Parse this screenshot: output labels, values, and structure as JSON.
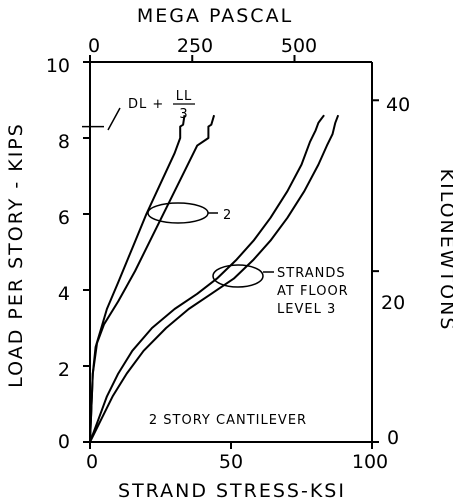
{
  "chart_data": {
    "type": "line",
    "title": "",
    "xlabel": "STRAND STRESS-KSI",
    "ylabel": "LOAD PER STORY - KIPS",
    "x2label": "MEGA PASCAL",
    "y2label": "KILONEWTONS",
    "xlim": [
      0,
      100
    ],
    "ylim": [
      0,
      10
    ],
    "x2lim": [
      0,
      689.5
    ],
    "y2lim": [
      0,
      44.48
    ],
    "x_ticks": [
      "0",
      "50",
      "100"
    ],
    "y_ticks": [
      "0",
      "2",
      "4",
      "6",
      "8",
      "10"
    ],
    "x2_ticks": [
      "0",
      "250",
      "500"
    ],
    "y2_ticks": [
      "0",
      "20",
      "40"
    ],
    "grid": false,
    "reference_load": 8.3,
    "series": [
      {
        "x": [
          0,
          1,
          2,
          4,
          6,
          10,
          15,
          20,
          25,
          30,
          32,
          32,
          33,
          33.5
        ],
        "y": [
          0,
          1.8,
          2.5,
          3.0,
          3.5,
          4.2,
          5.1,
          6.0,
          6.8,
          7.6,
          8.0,
          8.3,
          8.35,
          8.6
        ]
      },
      {
        "x": [
          0,
          1,
          2.5,
          5,
          10,
          16,
          22,
          28,
          34,
          38,
          42,
          42,
          43,
          44
        ],
        "y": [
          0,
          1.8,
          2.6,
          3.1,
          3.7,
          4.5,
          5.4,
          6.3,
          7.2,
          7.8,
          8.0,
          8.3,
          8.35,
          8.6
        ]
      },
      {
        "x": [
          0,
          3,
          6,
          10,
          15,
          22,
          30,
          38,
          45,
          52,
          58,
          64,
          70,
          75,
          78,
          80,
          81,
          82,
          83
        ],
        "y": [
          0,
          0.6,
          1.2,
          1.8,
          2.4,
          3.0,
          3.5,
          3.9,
          4.3,
          4.8,
          5.3,
          5.9,
          6.6,
          7.3,
          7.9,
          8.2,
          8.4,
          8.5,
          8.6
        ]
      },
      {
        "x": [
          0,
          4,
          8,
          13,
          19,
          27,
          35,
          43,
          51,
          58,
          64,
          70,
          76,
          81,
          84,
          86,
          87,
          88
        ],
        "y": [
          0,
          0.6,
          1.2,
          1.8,
          2.4,
          3.0,
          3.5,
          3.9,
          4.3,
          4.8,
          5.3,
          5.9,
          6.6,
          7.3,
          7.8,
          8.1,
          8.4,
          8.6
        ]
      }
    ],
    "annotations": {
      "load_case_pre": "DL +",
      "load_case_num": "LL",
      "load_case_den": "3",
      "group_label": "2",
      "strands_1": "STRANDS",
      "strands_2": "AT FLOOR",
      "strands_3": "LEVEL 3",
      "caption": "2 STORY CANTILEVER"
    }
  }
}
